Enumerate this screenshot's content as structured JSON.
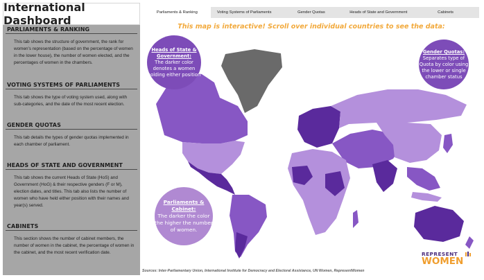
{
  "dashboard": {
    "title": "International Dashboard"
  },
  "tabs": [
    {
      "label": "Parliaments & Ranking",
      "active": true
    },
    {
      "label": "Voting Systems of Parliaments",
      "active": false
    },
    {
      "label": "Gender Quotas",
      "active": false
    },
    {
      "label": "Heads of State and Government",
      "active": false
    },
    {
      "label": "Cabinets",
      "active": false
    }
  ],
  "sidebar": {
    "sections": [
      {
        "heading": "PARLIAMENTS & RANKING",
        "body": "This tab shows the structure of government, the rank for women's representation (based on the percentage of women in the lower house), the number of women elected, and the percentages of women in the chambers."
      },
      {
        "heading": "VOTING SYSTEMS OF PARLIAMENTS",
        "body": "This tab shows the type of voting system used, along with sub-categories, and the date of the most recent election."
      },
      {
        "heading": "GENDER QUOTAS",
        "body": "This tab details the types of gender quotas implemented in each chamber of parliament."
      },
      {
        "heading": "HEADS OF STATE AND GOVERNMENT",
        "body": "This tab shows the current Heads of State (HoS) and Government (HoG) & their respective genders (F or M), election dates, and titles. This tab also lists the number of women who have held either position with their names and year(s) served."
      },
      {
        "heading": "CABINETS",
        "body": "This section shows the number of cabinet members, the number of women in the cabinet, the percentage of women in the cabinet, and the most recent verification date."
      }
    ]
  },
  "main": {
    "headline": "This map is interactive! Scroll over individual countries to see the data:",
    "sources": "Sources: Inter-Parliamentary Union, International Institute for Democracy and Electoral Assistance, UN Women, RepresentWomen"
  },
  "bubbles": {
    "heads_of_state": {
      "title": "Heads of State & Government:",
      "text": "The darker color denotes a women holding either position"
    },
    "gender_quotas": {
      "title": "Gender Quotas:",
      "text": "Separates type of Quota by color using the lower or single chamber status"
    },
    "parliaments_cabinet": {
      "title": "Parliaments & Cabinet:",
      "text": "The darker the color the higher the number of women."
    }
  },
  "logo": {
    "line1": "REPRESENT",
    "line2": "WOMEN"
  },
  "colors": {
    "sidebar_bg": "#a6a6a6",
    "headline": "#f2a93b",
    "map_dark": "#5a2a9c",
    "map_mid": "#8757c4",
    "map_light": "#b490dc",
    "greenland": "#6a6a6a",
    "logo_purple": "#4b2c7c",
    "logo_orange": "#f09e2e"
  }
}
